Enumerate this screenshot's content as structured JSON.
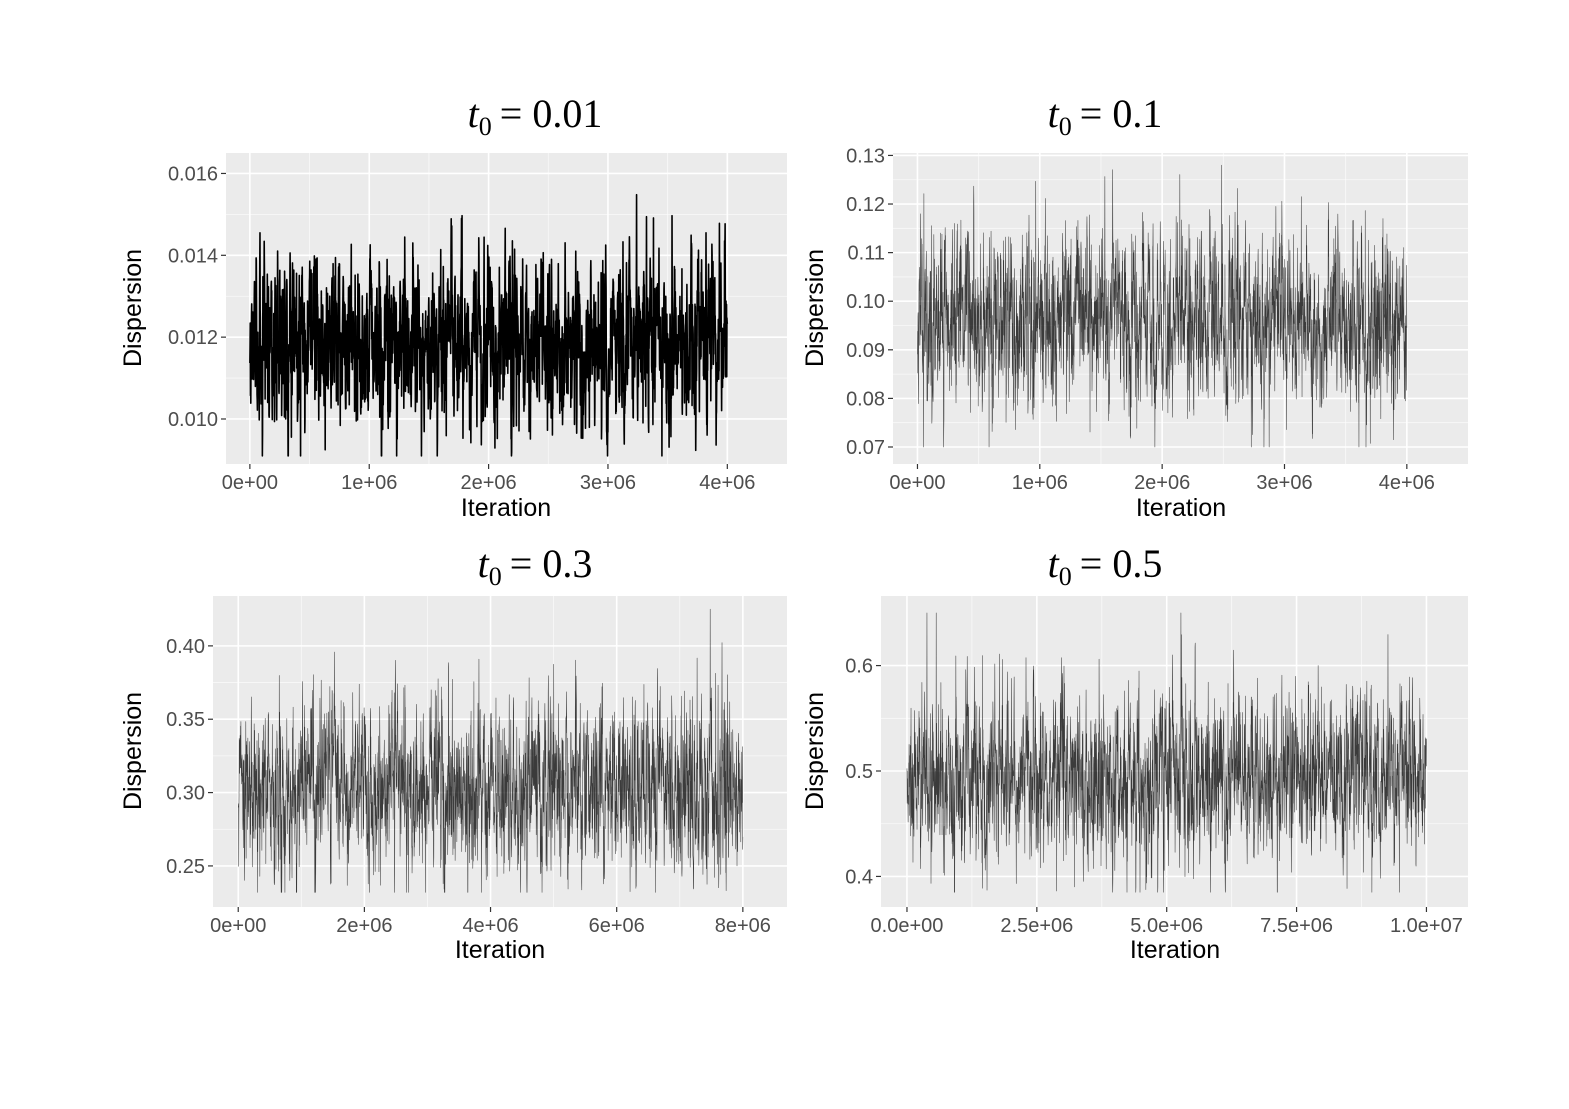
{
  "figure": {
    "xlabel": "Iteration",
    "ylabel": "Dispersion",
    "colors": {
      "panel_background": "#ebebeb",
      "grid_major": "#ffffff",
      "trace": "#000000",
      "tick_text": "#4d4d4d"
    }
  },
  "chart_data": [
    {
      "type": "line",
      "title_symbol": "t",
      "title_subscript": "0",
      "title_value": "= 0.01",
      "xlabel": "Iteration",
      "ylabel": "Dispersion",
      "xlim": [
        -200000,
        4500000
      ],
      "ylim": [
        0.0089,
        0.0165
      ],
      "x_ticks": [
        0,
        1000000,
        2000000,
        3000000,
        4000000
      ],
      "x_tick_labels": [
        "0e+00",
        "1e+06",
        "2e+06",
        "3e+06",
        "4e+06"
      ],
      "y_ticks": [
        0.01,
        0.012,
        0.014,
        0.016
      ],
      "y_tick_labels": [
        "0.010",
        "0.012",
        "0.014",
        "0.016"
      ],
      "grid": true,
      "series": [
        {
          "x_range": [
            0,
            4000000
          ],
          "mean": 0.0119,
          "min": 0.0091,
          "max": 0.0162,
          "trace": "dense"
        }
      ]
    },
    {
      "type": "line",
      "title_symbol": "t",
      "title_subscript": "0",
      "title_value": "= 0.1",
      "xlabel": "Iteration",
      "ylabel": "Dispersion",
      "xlim": [
        -200000,
        4500000
      ],
      "ylim": [
        0.0665,
        0.1305
      ],
      "x_ticks": [
        0,
        1000000,
        2000000,
        3000000,
        4000000
      ],
      "x_tick_labels": [
        "0e+00",
        "1e+06",
        "2e+06",
        "3e+06",
        "4e+06"
      ],
      "y_ticks": [
        0.07,
        0.08,
        0.09,
        0.1,
        0.11,
        0.12,
        0.13
      ],
      "y_tick_labels": [
        "0.07",
        "0.08",
        "0.09",
        "0.10",
        "0.11",
        "0.12",
        "0.13"
      ],
      "grid": true,
      "series": [
        {
          "x_range": [
            0,
            4000000
          ],
          "mean": 0.096,
          "min": 0.07,
          "max": 0.128,
          "trace": "thin"
        }
      ]
    },
    {
      "type": "line",
      "title_symbol": "t",
      "title_subscript": "0",
      "title_value": "= 0.3",
      "xlabel": "Iteration",
      "ylabel": "Dispersion",
      "xlim": [
        -400000,
        8700000
      ],
      "ylim": [
        0.222,
        0.434
      ],
      "x_ticks": [
        0,
        2000000,
        4000000,
        6000000,
        8000000
      ],
      "x_tick_labels": [
        "0e+00",
        "2e+06",
        "4e+06",
        "6e+06",
        "8e+06"
      ],
      "y_ticks": [
        0.25,
        0.3,
        0.35,
        0.4
      ],
      "y_tick_labels": [
        "0.25",
        "0.30",
        "0.35",
        "0.40"
      ],
      "grid": true,
      "series": [
        {
          "x_range": [
            0,
            8000000
          ],
          "mean": 0.303,
          "min": 0.232,
          "max": 0.425,
          "trace": "thin"
        }
      ]
    },
    {
      "type": "line",
      "title_symbol": "t",
      "title_subscript": "0",
      "title_value": "= 0.5",
      "xlabel": "Iteration",
      "ylabel": "Dispersion",
      "xlim": [
        -500000,
        10800000
      ],
      "ylim": [
        0.371,
        0.666
      ],
      "x_ticks": [
        0,
        2500000,
        5000000,
        7500000,
        10000000
      ],
      "x_tick_labels": [
        "0.0e+00",
        "2.5e+06",
        "5.0e+06",
        "7.5e+06",
        "1.0e+07"
      ],
      "y_ticks": [
        0.4,
        0.5,
        0.6
      ],
      "y_tick_labels": [
        "0.4",
        "0.5",
        "0.6"
      ],
      "grid": true,
      "series": [
        {
          "x_range": [
            0,
            10000000
          ],
          "mean": 0.495,
          "min": 0.385,
          "max": 0.65,
          "trace": "thin"
        }
      ]
    }
  ]
}
